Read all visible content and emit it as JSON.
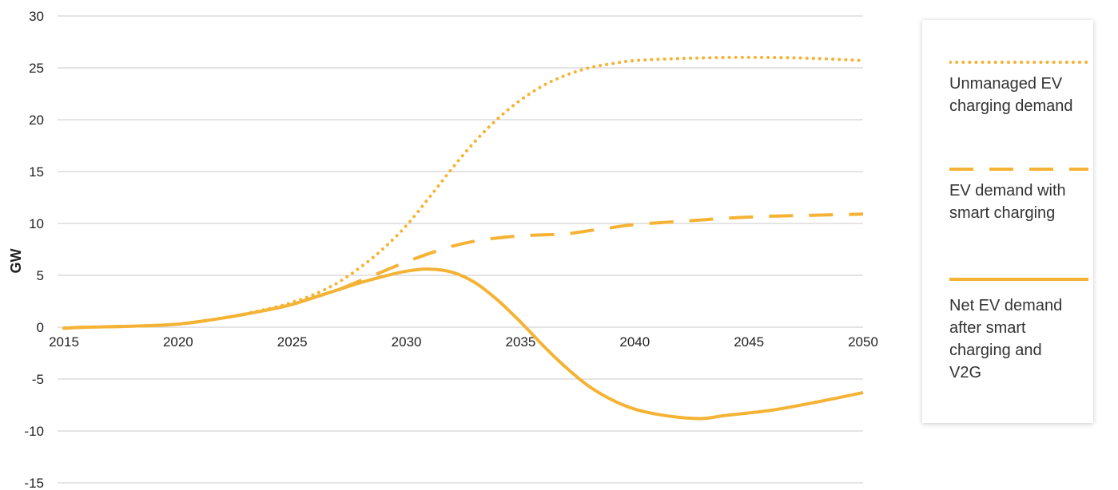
{
  "chart_data": {
    "type": "line",
    "title": "",
    "xlabel": "",
    "ylabel": "GW",
    "xlim": [
      2015,
      2050
    ],
    "ylim": [
      -15,
      30
    ],
    "x_ticks": [
      2015,
      2020,
      2025,
      2030,
      2035,
      2040,
      2045,
      2050
    ],
    "y_ticks": [
      30,
      25,
      20,
      15,
      10,
      5,
      0,
      -5,
      -10,
      -15
    ],
    "grid": "horizontal",
    "legend_position": "right",
    "color": "#F5B335",
    "series": [
      {
        "name": "Unmanaged EV charging demand",
        "style": "dotted",
        "x": [
          2015,
          2016,
          2018,
          2020,
          2022,
          2024,
          2025,
          2026,
          2027,
          2028,
          2029,
          2030,
          2031,
          2032,
          2033,
          2034,
          2035,
          2036,
          2037,
          2038,
          2039,
          2040,
          2042,
          2044,
          2046,
          2048,
          2050
        ],
        "y": [
          -0.1,
          0,
          0.1,
          0.3,
          0.9,
          1.8,
          2.4,
          3.2,
          4.3,
          5.8,
          7.6,
          9.8,
          12.5,
          15.3,
          17.9,
          20.1,
          21.9,
          23.3,
          24.3,
          25.0,
          25.4,
          25.7,
          25.9,
          26.0,
          26.0,
          25.9,
          25.7
        ]
      },
      {
        "name": "EV demand with smart charging",
        "style": "dashed",
        "x": [
          2015,
          2016,
          2018,
          2020,
          2022,
          2024,
          2025,
          2026,
          2027,
          2028,
          2029,
          2030,
          2031,
          2032,
          2033,
          2034,
          2035,
          2036,
          2037,
          2038,
          2039,
          2040,
          2042,
          2044,
          2046,
          2048,
          2050
        ],
        "y": [
          -0.1,
          0,
          0.1,
          0.3,
          0.9,
          1.7,
          2.2,
          2.9,
          3.6,
          4.5,
          5.4,
          6.3,
          7.1,
          7.8,
          8.3,
          8.6,
          8.8,
          8.9,
          9.0,
          9.3,
          9.6,
          9.9,
          10.2,
          10.5,
          10.7,
          10.8,
          10.9
        ]
      },
      {
        "name": "Net EV demand after smart charging and V2G",
        "style": "solid",
        "x": [
          2015,
          2016,
          2018,
          2020,
          2022,
          2024,
          2025,
          2026,
          2027,
          2028,
          2029,
          2030,
          2031,
          2032,
          2033,
          2034,
          2035,
          2036,
          2037,
          2038,
          2039,
          2040,
          2041,
          2042,
          2043,
          2044,
          2046,
          2048,
          2050
        ],
        "y": [
          -0.1,
          0,
          0.1,
          0.3,
          0.9,
          1.7,
          2.2,
          2.9,
          3.6,
          4.3,
          4.9,
          5.4,
          5.6,
          5.3,
          4.3,
          2.6,
          0.5,
          -1.8,
          -3.9,
          -5.7,
          -7.0,
          -7.9,
          -8.4,
          -8.7,
          -8.8,
          -8.5,
          -8.0,
          -7.2,
          -6.3
        ]
      }
    ]
  }
}
